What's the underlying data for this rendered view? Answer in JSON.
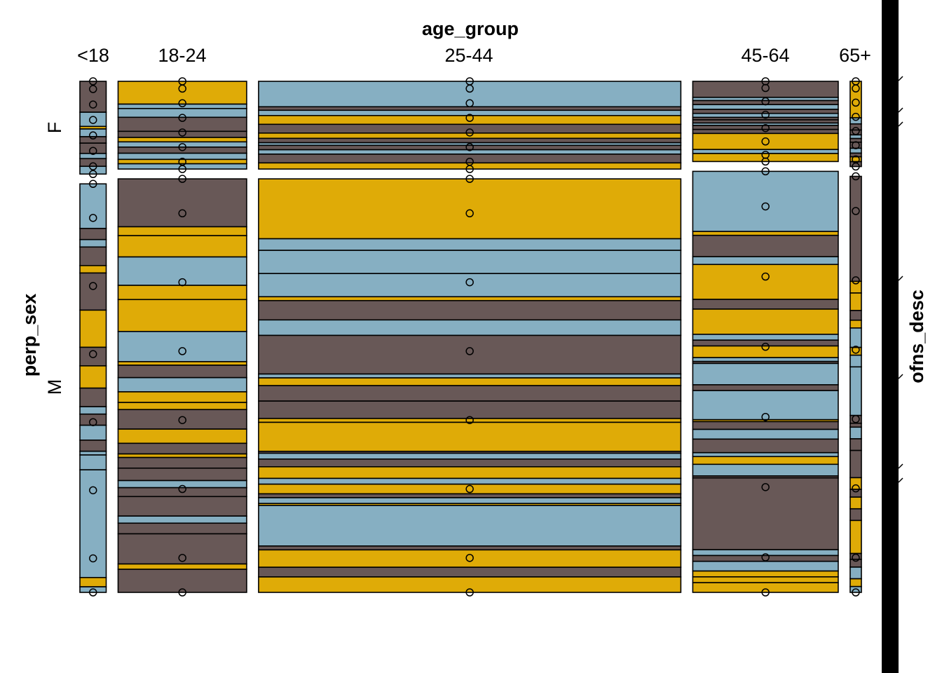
{
  "chart_data": {
    "type": "mosaic",
    "x_variable": "age_group",
    "y_variable": "perp_sex",
    "z_variable": "ofns_desc",
    "age_groups": [
      "<18",
      "18-24",
      "25-44",
      "45-64",
      "65+"
    ],
    "age_group_proportions": [
      0.028,
      0.137,
      0.45,
      0.155,
      0.012
    ],
    "sexes": [
      "F",
      "M"
    ],
    "female_share_by_age_group": [
      0.185,
      0.175,
      0.175,
      0.16,
      0.17
    ],
    "palette": [
      "#DFAB07",
      "#86AFC2",
      "#685857"
    ],
    "empty_cell_marker": "circle",
    "cells": {
      "<18": {
        "F": [
          [
            0.12,
            2
          ],
          [
            0.055,
            1
          ],
          [
            0.01,
            0
          ],
          [
            0.03,
            1
          ],
          [
            0.025,
            2
          ],
          [
            0.04,
            2
          ],
          [
            0.02,
            1
          ],
          [
            0.03,
            2
          ],
          [
            0.03,
            1
          ]
        ],
        "M": [
          [
            0.12,
            1
          ],
          [
            0.03,
            2
          ],
          [
            0.02,
            1
          ],
          [
            0.05,
            2
          ],
          [
            0.02,
            0
          ],
          [
            0.1,
            2
          ],
          [
            0.1,
            0
          ],
          [
            0.05,
            2
          ],
          [
            0.06,
            0
          ],
          [
            0.05,
            2
          ],
          [
            0.02,
            1
          ],
          [
            0.03,
            2
          ],
          [
            0.04,
            1
          ],
          [
            0.03,
            2
          ],
          [
            0.01,
            1
          ],
          [
            0.04,
            1
          ],
          [
            0.29,
            1
          ],
          [
            0.025,
            0
          ],
          [
            0.015,
            1
          ]
        ]
      },
      "18-24": {
        "F": [
          [
            0.26,
            0
          ],
          [
            0.05,
            1
          ],
          [
            0.1,
            1
          ],
          [
            0.16,
            2
          ],
          [
            0.07,
            2
          ],
          [
            0.05,
            0
          ],
          [
            0.06,
            1
          ],
          [
            0.07,
            2
          ],
          [
            0.07,
            1
          ],
          [
            0.05,
            0
          ],
          [
            0.06,
            1
          ]
        ],
        "M": [
          [
            0.135,
            2
          ],
          [
            0.025,
            0
          ],
          [
            0.06,
            0
          ],
          [
            0.08,
            1
          ],
          [
            0.04,
            0
          ],
          [
            0.09,
            0
          ],
          [
            0.085,
            1
          ],
          [
            0.01,
            0
          ],
          [
            0.035,
            2
          ],
          [
            0.04,
            1
          ],
          [
            0.03,
            0
          ],
          [
            0.02,
            0
          ],
          [
            0.055,
            2
          ],
          [
            0.04,
            0
          ],
          [
            0.03,
            2
          ],
          [
            0.01,
            0
          ],
          [
            0.03,
            2
          ],
          [
            0.035,
            2
          ],
          [
            0.02,
            1
          ],
          [
            0.025,
            2
          ],
          [
            0.055,
            2
          ],
          [
            0.02,
            1
          ],
          [
            0.03,
            2
          ],
          [
            0.085,
            2
          ],
          [
            0.015,
            0
          ],
          [
            0.065,
            2
          ]
        ]
      },
      "25-44": {
        "F": [
          [
            0.29,
            1
          ],
          [
            0.04,
            2
          ],
          [
            0.06,
            1
          ],
          [
            0.1,
            0
          ],
          [
            0.1,
            2
          ],
          [
            0.06,
            0
          ],
          [
            0.05,
            2
          ],
          [
            0.03,
            1
          ],
          [
            0.05,
            2
          ],
          [
            0.05,
            1
          ],
          [
            0.1,
            2
          ],
          [
            0.07,
            0
          ]
        ],
        "M": [
          [
            0.155,
            0
          ],
          [
            0.03,
            1
          ],
          [
            0.06,
            1
          ],
          [
            0.06,
            1
          ],
          [
            0.01,
            0
          ],
          [
            0.05,
            2
          ],
          [
            0.04,
            1
          ],
          [
            0.1,
            2
          ],
          [
            0.01,
            1
          ],
          [
            0.02,
            0
          ],
          [
            0.04,
            2
          ],
          [
            0.045,
            2
          ],
          [
            0.01,
            0
          ],
          [
            0.075,
            0
          ],
          [
            0.005,
            2
          ],
          [
            0.015,
            1
          ],
          [
            0.02,
            2
          ],
          [
            0.03,
            0
          ],
          [
            0.015,
            1
          ],
          [
            0.025,
            0
          ],
          [
            0.01,
            2
          ],
          [
            0.015,
            1
          ],
          [
            0.005,
            0
          ],
          [
            0.105,
            1
          ],
          [
            0.01,
            2
          ],
          [
            0.045,
            0
          ],
          [
            0.025,
            2
          ],
          [
            0.04,
            0
          ]
        ]
      },
      "45-64": {
        "F": [
          [
            0.2,
            2
          ],
          [
            0.04,
            1
          ],
          [
            0.05,
            2
          ],
          [
            0.06,
            1
          ],
          [
            0.05,
            2
          ],
          [
            0.05,
            1
          ],
          [
            0.03,
            2
          ],
          [
            0.04,
            2
          ],
          [
            0.03,
            1
          ],
          [
            0.05,
            2
          ],
          [
            0.05,
            2
          ],
          [
            0.2,
            0
          ],
          [
            0.05,
            1
          ],
          [
            0.1,
            0
          ]
        ],
        "M": [
          [
            0.155,
            1
          ],
          [
            0.01,
            0
          ],
          [
            0.055,
            2
          ],
          [
            0.02,
            1
          ],
          [
            0.09,
            0
          ],
          [
            0.025,
            2
          ],
          [
            0.065,
            0
          ],
          [
            0.015,
            1
          ],
          [
            0.015,
            2
          ],
          [
            0.03,
            0
          ],
          [
            0.01,
            1
          ],
          [
            0.005,
            2
          ],
          [
            0.055,
            1
          ],
          [
            0.015,
            2
          ],
          [
            0.075,
            1
          ],
          [
            0.005,
            0
          ],
          [
            0.02,
            2
          ],
          [
            0.025,
            1
          ],
          [
            0.035,
            2
          ],
          [
            0.01,
            1
          ],
          [
            0.02,
            0
          ],
          [
            0.03,
            1
          ],
          [
            0.005,
            2
          ],
          [
            0.185,
            2
          ],
          [
            0.015,
            1
          ],
          [
            0.015,
            2
          ],
          [
            0.025,
            1
          ],
          [
            0.015,
            0
          ],
          [
            0.015,
            0
          ],
          [
            0.025,
            0
          ]
        ]
      },
      "65+": {
        "F": [
          [
            0.3,
            0
          ],
          [
            0.05,
            1
          ],
          [
            0.05,
            2
          ],
          [
            0.04,
            2
          ],
          [
            0.03,
            1
          ],
          [
            0.03,
            2
          ],
          [
            0.05,
            2
          ],
          [
            0.04,
            1
          ],
          [
            0.03,
            2
          ],
          [
            0.04,
            0
          ],
          [
            0.04,
            2
          ]
        ],
        "M": [
          [
            0.27,
            2
          ],
          [
            0.03,
            0
          ],
          [
            0.045,
            0
          ],
          [
            0.025,
            2
          ],
          [
            0.02,
            0
          ],
          [
            0.05,
            1
          ],
          [
            0.02,
            0
          ],
          [
            0.03,
            1
          ],
          [
            0.125,
            1
          ],
          [
            0.02,
            2
          ],
          [
            0.01,
            2
          ],
          [
            0.03,
            1
          ],
          [
            0.03,
            2
          ],
          [
            0.07,
            2
          ],
          [
            0.03,
            0
          ],
          [
            0.02,
            2
          ],
          [
            0.03,
            0
          ],
          [
            0.03,
            2
          ],
          [
            0.085,
            0
          ],
          [
            0.015,
            2
          ],
          [
            0.02,
            2
          ],
          [
            0.03,
            1
          ],
          [
            0.02,
            0
          ],
          [
            0.015,
            1
          ]
        ]
      }
    },
    "grid": false,
    "legend": "none"
  },
  "labels": {
    "x_title": "age_group",
    "y_title": "perp_sex",
    "z_title": "ofns_desc",
    "sex_f": "F",
    "sex_m": "M",
    "age_labels": [
      "<18",
      "18-24",
      "25-44",
      "45-64",
      "65+"
    ]
  }
}
